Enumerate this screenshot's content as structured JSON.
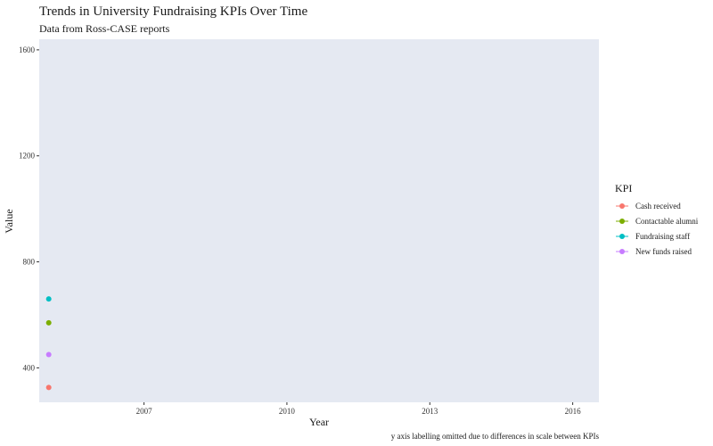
{
  "chart_data": {
    "type": "scatter",
    "title": "Trends in University Fundraising KPIs Over Time",
    "subtitle": "Data from Ross-CASE reports",
    "xlabel": "Year",
    "ylabel": "Value",
    "caption": "y axis labelling omitted due to differences in scale between KPIs",
    "xlim": [
      2004.8,
      2016.55
    ],
    "ylim": [
      270,
      1640
    ],
    "x_ticks": [
      2007,
      2010,
      2013,
      2016
    ],
    "y_ticks": [
      400,
      800,
      1200,
      1600
    ],
    "grid": false,
    "panel_background": "#E5E9F2",
    "legend": {
      "title": "KPI",
      "placement": "right"
    },
    "series": [
      {
        "name": "Cash received",
        "color": "#F8766D",
        "x": [
          2005
        ],
        "y": [
          326
        ]
      },
      {
        "name": "Contactable alumni",
        "color": "#7CAE00",
        "x": [
          2005
        ],
        "y": [
          570
        ]
      },
      {
        "name": "Fundraising staff",
        "color": "#00BFC4",
        "x": [
          2005
        ],
        "y": [
          660
        ]
      },
      {
        "name": "New funds raised",
        "color": "#C77CFF",
        "x": [
          2005
        ],
        "y": [
          450
        ]
      }
    ]
  }
}
